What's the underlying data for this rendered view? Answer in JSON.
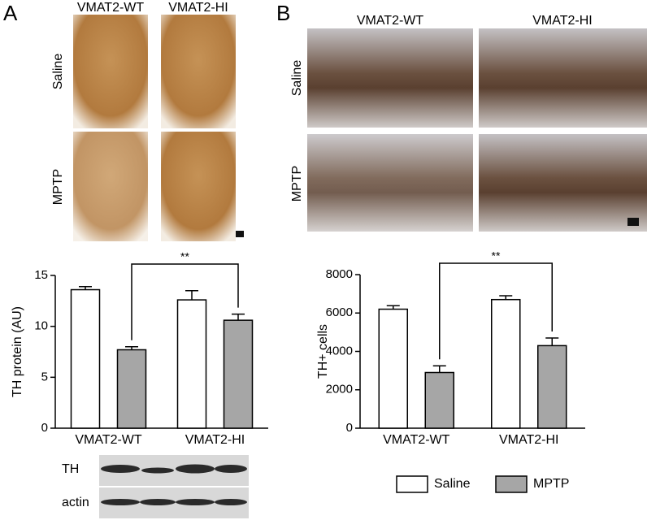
{
  "panels": {
    "a": {
      "label": "A",
      "columns": [
        "VMAT2-WT",
        "VMAT2-HI"
      ],
      "rows": [
        "Saline",
        "MPTP"
      ],
      "blot": [
        "TH",
        "actin"
      ]
    },
    "b": {
      "label": "B",
      "columns": [
        "VMAT2-WT",
        "VMAT2-HI"
      ],
      "rows": [
        "Saline",
        "MPTP"
      ]
    }
  },
  "chart_data": [
    {
      "type": "bar",
      "y_label": "TH protein (AU)",
      "categories": [
        "VMAT2-WT",
        "VMAT2-HI"
      ],
      "series": [
        {
          "name": "Saline",
          "color": "#ffffff",
          "values": [
            13.6,
            12.6
          ],
          "errors": [
            0.3,
            0.9
          ]
        },
        {
          "name": "MPTP",
          "color": "#a6a6a6",
          "values": [
            7.7,
            10.6
          ],
          "errors": [
            0.3,
            0.6
          ]
        }
      ],
      "ylim": [
        0,
        15
      ],
      "yticks": [
        0,
        5,
        10,
        15
      ],
      "annotation": "**"
    },
    {
      "type": "bar",
      "y_label": "TH+ cells",
      "categories": [
        "VMAT2-WT",
        "VMAT2-HI"
      ],
      "series": [
        {
          "name": "Saline",
          "color": "#ffffff",
          "values": [
            6200,
            6700
          ],
          "errors": [
            180,
            200
          ]
        },
        {
          "name": "MPTP",
          "color": "#a6a6a6",
          "values": [
            2900,
            4300
          ],
          "errors": [
            350,
            400
          ]
        }
      ],
      "ylim": [
        0,
        8000
      ],
      "yticks": [
        0,
        2000,
        4000,
        6000,
        8000
      ],
      "annotation": "**",
      "legend": "bottom"
    }
  ]
}
